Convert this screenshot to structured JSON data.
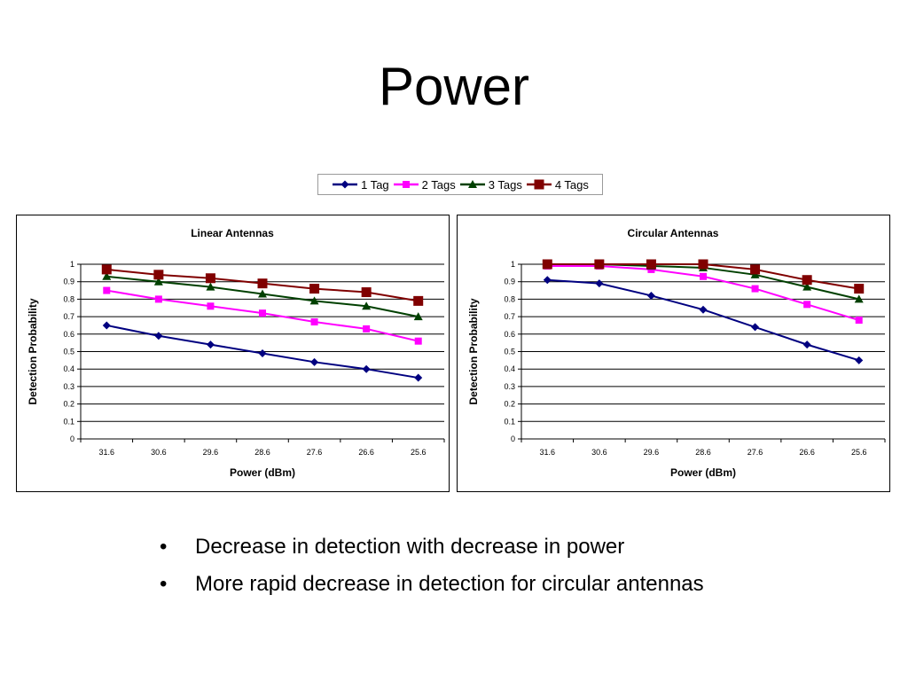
{
  "slide": {
    "title": "Power",
    "bullets": [
      "Decrease in detection with decrease in power",
      "More rapid decrease in detection for circular antennas"
    ]
  },
  "legend": [
    {
      "name": "1 Tag",
      "color": "#000080",
      "marker": "diamond"
    },
    {
      "name": "2 Tags",
      "color": "#FF00FF",
      "marker": "square"
    },
    {
      "name": "3 Tags",
      "color": "#004000",
      "marker": "triangle"
    },
    {
      "name": "4 Tags",
      "color": "#800000",
      "marker": "square-large"
    }
  ],
  "chart_data": [
    {
      "type": "line",
      "title": "Linear Antennas",
      "xlabel": "Power (dBm)",
      "ylabel": "Detection Probability",
      "categories": [
        "31.6",
        "30.6",
        "29.6",
        "28.6",
        "27.6",
        "26.6",
        "25.6"
      ],
      "ylim": [
        0,
        1
      ],
      "yticks": [
        "0",
        "0.1",
        "0.2",
        "0.3",
        "0.4",
        "0.5",
        "0.6",
        "0.7",
        "0.8",
        "0.9",
        "1"
      ],
      "grid": true,
      "series": [
        {
          "name": "1 Tag",
          "values": [
            0.65,
            0.59,
            0.54,
            0.49,
            0.44,
            0.4,
            0.35
          ]
        },
        {
          "name": "2 Tags",
          "values": [
            0.85,
            0.8,
            0.76,
            0.72,
            0.67,
            0.63,
            0.56
          ]
        },
        {
          "name": "3 Tags",
          "values": [
            0.93,
            0.9,
            0.87,
            0.83,
            0.79,
            0.76,
            0.7
          ]
        },
        {
          "name": "4 Tags",
          "values": [
            0.97,
            0.94,
            0.92,
            0.89,
            0.86,
            0.84,
            0.79
          ]
        }
      ]
    },
    {
      "type": "line",
      "title": "Circular Antennas",
      "xlabel": "Power (dBm)",
      "ylabel": "Detection Probability",
      "categories": [
        "31.6",
        "30.6",
        "29.6",
        "28.6",
        "27.6",
        "26.6",
        "25.6"
      ],
      "ylim": [
        0,
        1
      ],
      "yticks": [
        "0",
        "0.1",
        "0.2",
        "0.3",
        "0.4",
        "0.5",
        "0.6",
        "0.7",
        "0.8",
        "0.9",
        "1"
      ],
      "grid": true,
      "series": [
        {
          "name": "1 Tag",
          "values": [
            0.91,
            0.89,
            0.82,
            0.74,
            0.64,
            0.54,
            0.45
          ]
        },
        {
          "name": "2 Tags",
          "values": [
            0.99,
            0.99,
            0.97,
            0.93,
            0.86,
            0.77,
            0.68
          ]
        },
        {
          "name": "3 Tags",
          "values": [
            1.0,
            1.0,
            0.99,
            0.98,
            0.94,
            0.87,
            0.8
          ]
        },
        {
          "name": "4 Tags",
          "values": [
            1.0,
            1.0,
            1.0,
            1.0,
            0.97,
            0.91,
            0.86
          ]
        }
      ]
    }
  ]
}
